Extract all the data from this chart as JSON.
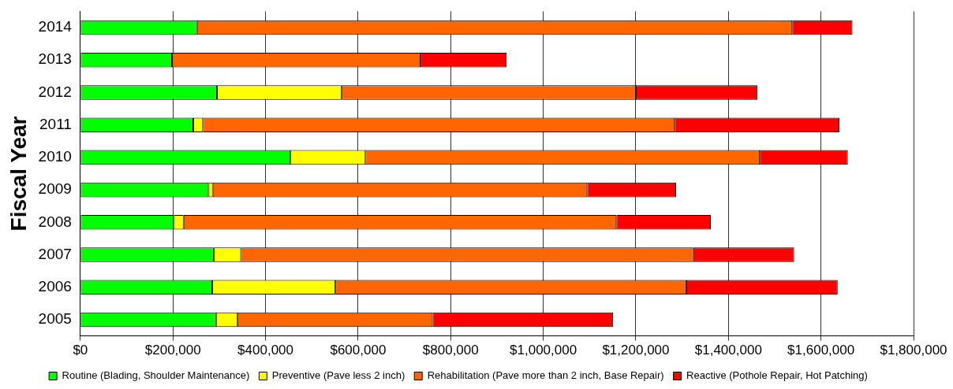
{
  "chart_data": {
    "type": "bar",
    "orientation": "horizontal",
    "stacked": true,
    "ylabel": "Fiscal Year",
    "categories": [
      "2014",
      "2013",
      "2012",
      "2011",
      "2010",
      "2009",
      "2008",
      "2007",
      "2006",
      "2005"
    ],
    "series": [
      {
        "name": "Routine (Blading, Shoulder Maintenance)",
        "color": "#00ff00",
        "values": [
          252000,
          198000,
          295000,
          244000,
          454000,
          277000,
          202000,
          288000,
          285000,
          293000
        ]
      },
      {
        "name": "Preventive (Pave less 2 inch)",
        "color": "#ffff00",
        "values": [
          0,
          0,
          269000,
          21000,
          162000,
          9000,
          21000,
          59000,
          266000,
          46000
        ]
      },
      {
        "name": "Rehabilitation (Pave more than 2 inch, Base Repair)",
        "color": "#ff6600",
        "values": [
          1286000,
          537000,
          636000,
          1019000,
          852000,
          809000,
          935000,
          977000,
          758000,
          422000
        ]
      },
      {
        "name": "Reactive (Pothole Repair, Hot Patching)",
        "color": "#ff0000",
        "values": [
          130000,
          186000,
          263000,
          356000,
          190000,
          192000,
          204000,
          218000,
          327000,
          390000
        ]
      }
    ],
    "xlim": [
      0,
      1800000
    ],
    "xticks": [
      {
        "value": 0,
        "label": "$0"
      },
      {
        "value": 200000,
        "label": "$200,000"
      },
      {
        "value": 400000,
        "label": "$400,000"
      },
      {
        "value": 600000,
        "label": "$600,000"
      },
      {
        "value": 800000,
        "label": "$800,000"
      },
      {
        "value": 1000000,
        "label": "$1,000,000"
      },
      {
        "value": 1200000,
        "label": "$1,200,000"
      },
      {
        "value": 1400000,
        "label": "$1,400,000"
      },
      {
        "value": 1600000,
        "label": "$1,600,000"
      },
      {
        "value": 1800000,
        "label": "$1,800,000"
      }
    ],
    "grid": "x",
    "legend": "bottom"
  }
}
